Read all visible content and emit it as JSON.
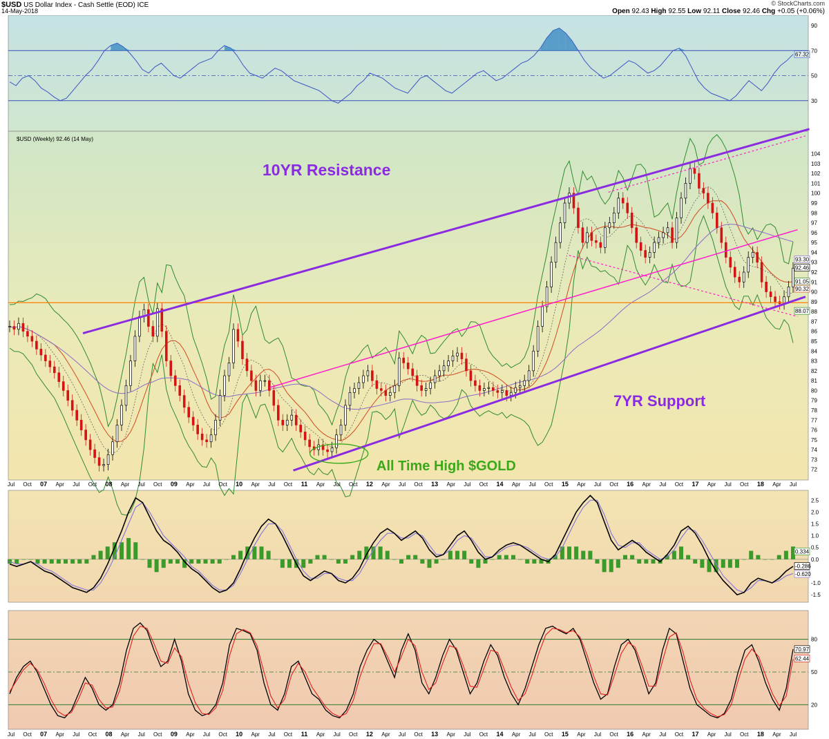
{
  "header": {
    "symbol": "$USD",
    "name": "US Dollar Index - Cash Settle (EOD)",
    "exchange": "ICE",
    "date": "14-May-2018",
    "credit": "© StockCharts.com",
    "open_label": "Open",
    "open": "92.43",
    "high_label": "High",
    "high": "92.55",
    "low_label": "Low",
    "low": "92.11",
    "close_label": "Close",
    "close": "92.46",
    "chg_label": "Chg",
    "chg": "+0.05 (+0.06%)"
  },
  "colors": {
    "rsi_line": "#3b55c4",
    "rsi_fill": "#2a7fc0",
    "resistance": "#8a2be2",
    "channel": "#ff1dce",
    "horizontal": "#ff7a00",
    "gold_annot": "#3aa81a",
    "candle_up": "#000000",
    "candle_down": "#d21414",
    "bollinger": "#2f8a2f",
    "ma_long": "#8c6ac8",
    "ma_mid": "#d04a1e",
    "macd_line": "#000000",
    "macd_signal": "#8a7ad8",
    "hist": "#3b9a2a",
    "stoch_k": "#000000",
    "stoch_d": "#e02020"
  },
  "chart_data": [
    {
      "type": "line",
      "panel": "RSI",
      "yticks": [
        30,
        50,
        70,
        90
      ],
      "ylim": [
        10,
        95
      ],
      "overbought": 70,
      "oversold": 30,
      "last_value_label": "67.32",
      "series": [
        {
          "values": [
            45,
            42,
            48,
            50,
            46,
            40,
            37,
            33,
            30,
            32,
            38,
            44,
            50,
            55,
            62,
            70,
            74,
            76,
            73,
            68,
            62,
            55,
            52,
            57,
            60,
            55,
            50,
            48,
            52,
            56,
            60,
            62,
            64,
            70,
            74,
            72,
            66,
            58,
            52,
            50,
            48,
            52,
            56,
            54,
            50,
            46,
            44,
            42,
            40,
            38,
            34,
            30,
            28,
            32,
            36,
            42,
            46,
            52,
            50,
            48,
            44,
            40,
            38,
            36,
            42,
            48,
            50,
            46,
            42,
            38,
            36,
            40,
            44,
            48,
            52,
            54,
            50,
            46,
            48,
            52,
            56,
            60,
            62,
            66,
            72,
            80,
            86,
            88,
            84,
            78,
            70,
            62,
            56,
            52,
            48,
            50,
            54,
            58,
            62,
            60,
            56,
            52,
            54,
            58,
            64,
            70,
            72,
            66,
            56,
            46,
            40,
            36,
            34,
            32,
            30,
            34,
            40,
            46,
            42,
            38,
            44,
            52,
            58,
            62,
            67
          ]
        }
      ]
    },
    {
      "type": "line",
      "panel": "Price",
      "title": "$USD (Weekly) 92.46 (14 May)",
      "ylim": [
        71,
        106
      ],
      "yticks": [
        72,
        73,
        74,
        75,
        76,
        77,
        78,
        79,
        80,
        81,
        82,
        83,
        84,
        85,
        86,
        87,
        88,
        89,
        90,
        91,
        92,
        93,
        94,
        95,
        96,
        97,
        98,
        99,
        100,
        101,
        102,
        103,
        104
      ],
      "xticks": [
        "Jul",
        "Oct",
        "07",
        "Apr",
        "Jul",
        "Oct",
        "08",
        "Apr",
        "Jul",
        "Oct",
        "09",
        "Apr",
        "Jul",
        "Oct",
        "10",
        "Apr",
        "Jul",
        "Oct",
        "11",
        "Apr",
        "Jul",
        "Oct",
        "12",
        "Apr",
        "Jul",
        "Oct",
        "13",
        "Apr",
        "Jul",
        "Oct",
        "14",
        "Apr",
        "Jul",
        "Oct",
        "15",
        "Apr",
        "Jul",
        "Oct",
        "16",
        "Apr",
        "Jul",
        "Oct",
        "17",
        "Apr",
        "Jul",
        "Oct",
        "18",
        "Apr",
        "Jul"
      ],
      "value_labels": [
        "92.46",
        "91.05",
        "90.32",
        "88.07",
        "93.30"
      ],
      "annotations": [
        "10YR Resistance",
        "7YR Support",
        "All Time High $GOLD"
      ],
      "horizontal_line": 88.9,
      "series": [
        {
          "name": "$USD",
          "values": [
            86.5,
            86.2,
            86.8,
            86.0,
            85.5,
            85.0,
            84.2,
            83.6,
            83.0,
            82.4,
            81.8,
            80.9,
            80.0,
            79.0,
            78.0,
            77.0,
            76.0,
            75.0,
            74.0,
            73.2,
            72.4,
            72.5,
            73.5,
            74.8,
            76.5,
            78.5,
            80.5,
            83.0,
            85.5,
            87.5,
            88.2,
            86.5,
            85.5,
            88.3,
            86.0,
            83.0,
            81.5,
            80.5,
            79.5,
            78.3,
            77.3,
            76.5,
            75.6,
            75.0,
            74.8,
            75.5,
            77.0,
            79.5,
            81.5,
            82.8,
            86.2,
            85.0,
            83.2,
            82.0,
            81.0,
            80.0,
            81.0,
            81.0,
            80.0,
            78.5,
            77.0,
            76.5,
            77.0,
            77.5,
            76.5,
            75.8,
            75.0,
            74.3,
            74.0,
            74.5,
            74.0,
            73.8,
            74.2,
            75.5,
            76.5,
            78.5,
            79.8,
            80.2,
            80.8,
            81.5,
            82.0,
            81.0,
            80.2,
            80.0,
            79.5,
            79.8,
            80.5,
            83.3,
            82.8,
            82.2,
            81.5,
            80.5,
            80.0,
            80.2,
            80.8,
            81.5,
            82.0,
            82.5,
            83.0,
            83.5,
            83.8,
            83.2,
            82.0,
            81.0,
            80.5,
            80.0,
            80.2,
            80.3,
            80.0,
            79.8,
            80.0,
            79.5,
            79.8,
            80.3,
            80.5,
            81.0,
            82.0,
            84.0,
            86.5,
            88.5,
            90.5,
            93.0,
            95.0,
            97.0,
            99.0,
            100.0,
            98.5,
            96.5,
            95.0,
            96.0,
            95.2,
            95.0,
            94.5,
            96.5,
            97.0,
            98.0,
            99.5,
            99.0,
            98.0,
            96.5,
            95.0,
            94.2,
            93.5,
            94.0,
            95.0,
            95.5,
            96.0,
            96.5,
            95.0,
            97.5,
            99.5,
            101.0,
            102.5,
            102.0,
            100.5,
            100.0,
            99.0,
            98.0,
            96.5,
            95.0,
            93.5,
            92.5,
            91.5,
            91.0,
            92.0,
            93.5,
            94.0,
            93.0,
            91.0,
            90.0,
            89.5,
            89.0,
            88.8,
            89.5,
            90.5,
            92.4
          ]
        }
      ]
    },
    {
      "type": "line",
      "panel": "MACD",
      "ylim": [
        -1.7,
        2.8
      ],
      "yticks": [
        -1.5,
        -1.0,
        0.0,
        0.5,
        1.0,
        1.5,
        2.0,
        2.5
      ],
      "ytick_labels": [
        "-1.5",
        "-1.0",
        "0.0",
        "0.5",
        "1.0",
        "1.5",
        "2.0",
        "2.5"
      ],
      "value_labels": [
        "0.334",
        "-0.286",
        "-0.620"
      ],
      "series": [
        {
          "values": [
            -0.2,
            -0.3,
            -0.2,
            -0.1,
            -0.3,
            -0.5,
            -0.6,
            -0.8,
            -1.0,
            -1.2,
            -1.3,
            -1.4,
            -1.2,
            -0.8,
            -0.2,
            0.5,
            1.2,
            2.0,
            2.6,
            2.4,
            1.8,
            1.2,
            0.8,
            0.6,
            0.3,
            -0.1,
            -0.4,
            -0.6,
            -0.9,
            -1.2,
            -1.4,
            -1.3,
            -1.0,
            -0.4,
            0.3,
            0.9,
            1.4,
            1.7,
            1.5,
            1.0,
            0.4,
            -0.2,
            -0.7,
            -0.9,
            -0.7,
            -0.5,
            -0.6,
            -0.9,
            -1.0,
            -0.8,
            -0.4,
            0.2,
            0.7,
            1.1,
            1.3,
            1.1,
            0.8,
            1.0,
            1.2,
            0.9,
            0.4,
            0.1,
            0.2,
            0.6,
            1.0,
            1.2,
            0.8,
            0.3,
            0.0,
            0.1,
            0.4,
            0.6,
            0.7,
            0.6,
            0.4,
            0.2,
            0.0,
            -0.1,
            0.2,
            0.8,
            1.4,
            2.0,
            2.4,
            2.7,
            2.4,
            1.6,
            0.8,
            0.4,
            0.6,
            0.8,
            0.6,
            0.3,
            0.1,
            -0.1,
            0.2,
            0.6,
            1.2,
            1.4,
            1.1,
            0.6,
            0.0,
            -0.5,
            -0.9,
            -1.2,
            -1.5,
            -1.4,
            -1.0,
            -0.8,
            -0.9,
            -1.0,
            -0.8,
            -0.5,
            -0.3
          ]
        },
        {
          "values": [
            -0.1,
            -0.2,
            -0.2,
            -0.1,
            -0.2,
            -0.4,
            -0.5,
            -0.7,
            -0.9,
            -1.1,
            -1.2,
            -1.3,
            -1.3,
            -1.0,
            -0.5,
            0.1,
            0.8,
            1.5,
            2.2,
            2.4,
            2.0,
            1.5,
            1.0,
            0.7,
            0.4,
            0.1,
            -0.3,
            -0.5,
            -0.8,
            -1.1,
            -1.3,
            -1.3,
            -1.1,
            -0.6,
            0.0,
            0.6,
            1.1,
            1.5,
            1.5,
            1.2,
            0.6,
            0.0,
            -0.5,
            -0.8,
            -0.8,
            -0.6,
            -0.6,
            -0.8,
            -0.9,
            -0.9,
            -0.6,
            -0.1,
            0.4,
            0.8,
            1.1,
            1.1,
            0.9,
            0.9,
            1.1,
            1.0,
            0.6,
            0.2,
            0.2,
            0.4,
            0.8,
            1.0,
            0.9,
            0.5,
            0.1,
            0.1,
            0.3,
            0.5,
            0.6,
            0.6,
            0.5,
            0.3,
            0.1,
            0.0,
            0.1,
            0.5,
            1.1,
            1.7,
            2.2,
            2.5,
            2.5,
            1.9,
            1.1,
            0.6,
            0.5,
            0.7,
            0.7,
            0.4,
            0.2,
            0.0,
            0.1,
            0.4,
            0.9,
            1.3,
            1.2,
            0.8,
            0.3,
            -0.2,
            -0.7,
            -1.0,
            -1.3,
            -1.4,
            -1.2,
            -0.9,
            -0.9,
            -1.0,
            -0.9,
            -0.7,
            -0.6
          ]
        }
      ]
    },
    {
      "type": "line",
      "panel": "Stochastic",
      "ylim": [
        0,
        100
      ],
      "yticks": [
        20,
        50,
        80
      ],
      "value_labels": [
        "70.97",
        "62.44"
      ],
      "series": [
        {
          "values": [
            30,
            45,
            55,
            60,
            50,
            35,
            20,
            10,
            8,
            15,
            30,
            45,
            35,
            20,
            15,
            20,
            40,
            70,
            90,
            95,
            88,
            70,
            55,
            60,
            80,
            60,
            30,
            15,
            10,
            12,
            20,
            40,
            75,
            90,
            88,
            85,
            70,
            40,
            20,
            15,
            30,
            55,
            60,
            45,
            30,
            25,
            15,
            10,
            8,
            15,
            30,
            55,
            70,
            80,
            75,
            60,
            45,
            70,
            85,
            70,
            40,
            30,
            45,
            65,
            80,
            70,
            50,
            30,
            40,
            60,
            75,
            65,
            45,
            30,
            20,
            35,
            55,
            75,
            90,
            92,
            88,
            85,
            90,
            80,
            60,
            40,
            25,
            30,
            55,
            75,
            80,
            70,
            50,
            30,
            40,
            70,
            90,
            85,
            60,
            35,
            20,
            15,
            10,
            8,
            12,
            25,
            50,
            70,
            75,
            60,
            40,
            25,
            15,
            35,
            71
          ]
        },
        {
          "values": [
            32,
            42,
            52,
            58,
            52,
            40,
            25,
            14,
            10,
            13,
            25,
            40,
            38,
            25,
            17,
            18,
            33,
            60,
            83,
            92,
            90,
            76,
            60,
            58,
            72,
            64,
            40,
            22,
            12,
            11,
            17,
            33,
            65,
            85,
            89,
            86,
            74,
            50,
            28,
            17,
            25,
            47,
            58,
            50,
            36,
            27,
            18,
            12,
            9,
            12,
            24,
            46,
            63,
            76,
            76,
            64,
            50,
            64,
            80,
            74,
            50,
            34,
            40,
            58,
            74,
            72,
            56,
            37,
            36,
            53,
            70,
            68,
            52,
            36,
            24,
            30,
            47,
            67,
            84,
            90,
            89,
            86,
            88,
            82,
            66,
            46,
            30,
            29,
            47,
            67,
            77,
            73,
            56,
            37,
            37,
            60,
            82,
            86,
            68,
            43,
            25,
            17,
            12,
            9,
            11,
            20,
            42,
            62,
            71,
            64,
            47,
            30,
            19,
            28,
            62
          ]
        }
      ]
    }
  ]
}
